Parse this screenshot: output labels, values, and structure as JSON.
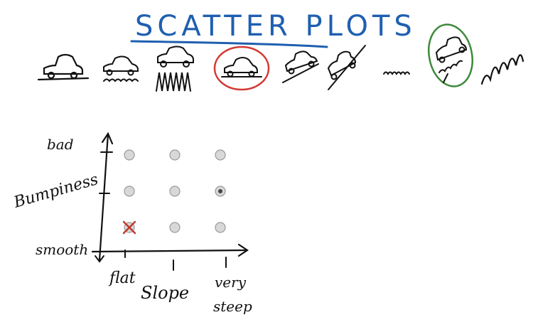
{
  "title": "SCATTER PLOTS",
  "colors": {
    "ink": "#111111",
    "title_blue": "#1f5fb0",
    "highlight_red": "#d23a32",
    "highlight_green": "#3d8a3a",
    "dot_fill": "#d8d8d8",
    "marker_red": "#c0392b"
  },
  "terrain_sketches": [
    {
      "name": "flat-smooth-car-icon",
      "highlight": null
    },
    {
      "name": "flat-bumpy-car-icon",
      "highlight": null
    },
    {
      "name": "flat-very-bumpy-car-icon",
      "highlight": null
    },
    {
      "name": "flat-smooth-car-icon",
      "highlight": "red"
    },
    {
      "name": "gentle-slope-car-icon",
      "highlight": null
    },
    {
      "name": "steep-slope-car-icon",
      "highlight": null
    },
    {
      "name": "squiggle-icon",
      "highlight": null
    },
    {
      "name": "steep-bumpy-car-icon",
      "highlight": "green"
    },
    {
      "name": "big-squiggle-icon",
      "highlight": null
    }
  ],
  "chart_data": {
    "type": "scatter",
    "title": "",
    "xlabel": "Slope",
    "ylabel": "Bumpiness",
    "x_ticks": [
      "flat",
      "",
      "very steep"
    ],
    "y_ticks": [
      "smooth",
      "",
      "bad"
    ],
    "points": [
      {
        "x": 1,
        "y": 3,
        "marker": "dot"
      },
      {
        "x": 2,
        "y": 3,
        "marker": "dot"
      },
      {
        "x": 3,
        "y": 3,
        "marker": "dot"
      },
      {
        "x": 1,
        "y": 2,
        "marker": "dot"
      },
      {
        "x": 2,
        "y": 2,
        "marker": "dot"
      },
      {
        "x": 3,
        "y": 2,
        "marker": "dot-center"
      },
      {
        "x": 1,
        "y": 1,
        "marker": "x"
      },
      {
        "x": 2,
        "y": 1,
        "marker": "dot"
      },
      {
        "x": 3,
        "y": 1,
        "marker": "dot"
      }
    ]
  }
}
